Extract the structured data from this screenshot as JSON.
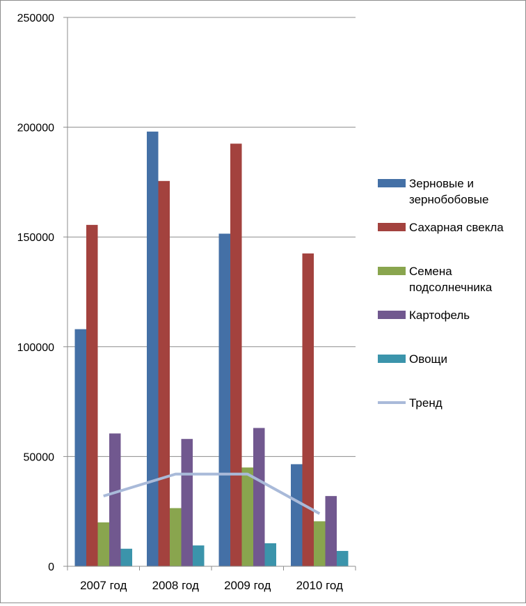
{
  "chart_data": {
    "type": "bar",
    "categories": [
      "2007 год",
      "2008 год",
      "2009 год",
      "2010 год"
    ],
    "series": [
      {
        "name": "Зерновые и зернобобовые",
        "name_lines": [
          "Зерновые и",
          "зернобобовые"
        ],
        "color": "#4470A6",
        "values": [
          108000,
          198000,
          151500,
          46500
        ]
      },
      {
        "name": "Сахарная свекла",
        "name_lines": [
          "Сахарная свекла"
        ],
        "color": "#A3423E",
        "values": [
          155500,
          175500,
          192500,
          142500
        ]
      },
      {
        "name": "Семена подсолнечника",
        "name_lines": [
          "Семена",
          "подсолнечника"
        ],
        "color": "#89A54E",
        "values": [
          20000,
          26500,
          45000,
          20500
        ]
      },
      {
        "name": "Картофель",
        "name_lines": [
          "Картофель"
        ],
        "color": "#71588F",
        "values": [
          60500,
          58000,
          63000,
          32000
        ]
      },
      {
        "name": "Овощи",
        "name_lines": [
          "Овощи"
        ],
        "color": "#3B94AB",
        "values": [
          8000,
          9500,
          10500,
          7000
        ]
      }
    ],
    "trend": {
      "name": "Тренд",
      "name_lines": [
        "Тренд"
      ],
      "type": "line",
      "color": "#A9BAD9",
      "values": [
        32000,
        42000,
        42000,
        24000
      ]
    },
    "ylim": [
      0,
      250000
    ],
    "yticks": [
      "0",
      "50000",
      "100000",
      "150000",
      "200000",
      "250000"
    ],
    "ytick_values": [
      0,
      50000,
      100000,
      150000,
      200000,
      250000
    ],
    "grid": true,
    "legend_position": "right"
  }
}
